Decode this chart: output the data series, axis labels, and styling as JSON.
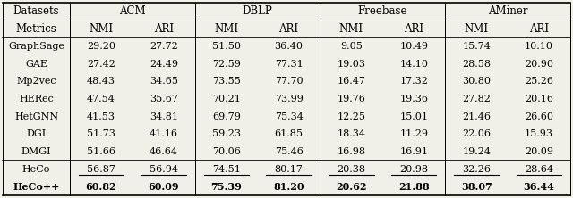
{
  "col_groups": [
    "ACM",
    "DBLP",
    "Freebase",
    "AMiner"
  ],
  "row_header": "Datasets",
  "row_header2": "Metrics",
  "methods": [
    "GraphSage",
    "GAE",
    "Mp2vec",
    "HERec",
    "HetGNN",
    "DGI",
    "DMGI",
    "HeCo",
    "HeCo++"
  ],
  "data": {
    "GraphSage": [
      "29.20",
      "27.72",
      "51.50",
      "36.40",
      "9.05",
      "10.49",
      "15.74",
      "10.10"
    ],
    "GAE": [
      "27.42",
      "24.49",
      "72.59",
      "77.31",
      "19.03",
      "14.10",
      "28.58",
      "20.90"
    ],
    "Mp2vec": [
      "48.43",
      "34.65",
      "73.55",
      "77.70",
      "16.47",
      "17.32",
      "30.80",
      "25.26"
    ],
    "HERec": [
      "47.54",
      "35.67",
      "70.21",
      "73.99",
      "19.76",
      "19.36",
      "27.82",
      "20.16"
    ],
    "HetGNN": [
      "41.53",
      "34.81",
      "69.79",
      "75.34",
      "12.25",
      "15.01",
      "21.46",
      "26.60"
    ],
    "DGI": [
      "51.73",
      "41.16",
      "59.23",
      "61.85",
      "18.34",
      "11.29",
      "22.06",
      "15.93"
    ],
    "DMGI": [
      "51.66",
      "46.64",
      "70.06",
      "75.46",
      "16.98",
      "16.91",
      "19.24",
      "20.09"
    ],
    "HeCo": [
      "56.87",
      "56.94",
      "74.51",
      "80.17",
      "20.38",
      "20.98",
      "32.26",
      "28.64"
    ],
    "HeCo++": [
      "60.82",
      "60.09",
      "75.39",
      "81.20",
      "20.62",
      "21.88",
      "38.07",
      "36.44"
    ]
  },
  "underline_rows": [
    "HeCo"
  ],
  "bold_rows": [
    "HeCo++"
  ],
  "bg_color": "#f0efe8",
  "font_size": 8.0,
  "header_font_size": 8.5
}
